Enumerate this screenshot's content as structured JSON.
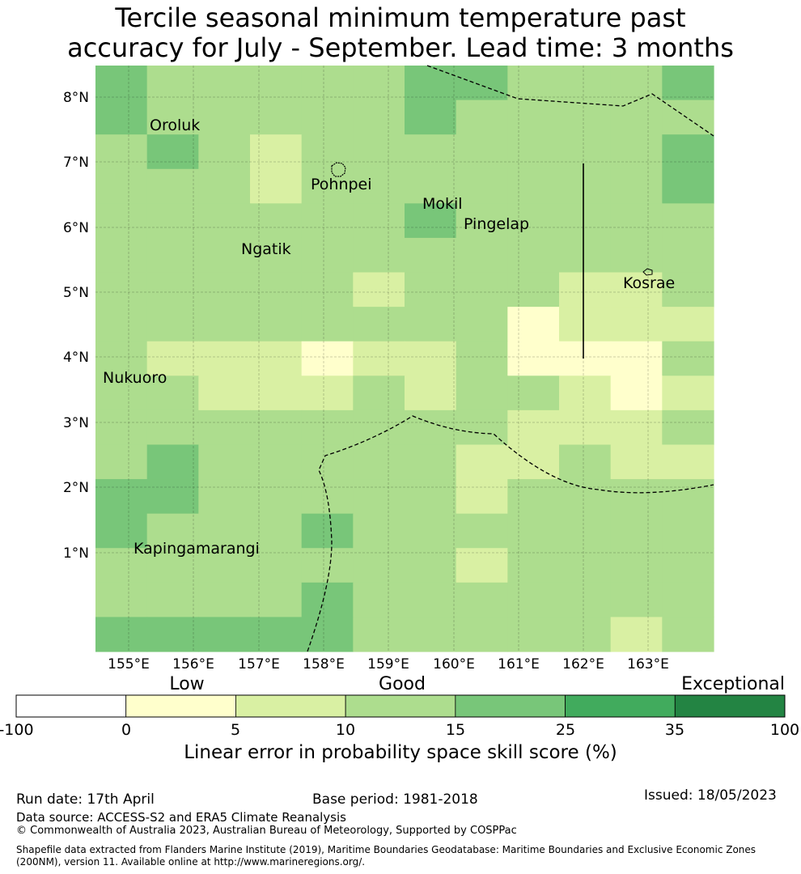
{
  "title": "Tercile seasonal minimum temperature past\naccuracy for July - September. Lead time: 3 months",
  "map": {
    "lat_labels": [
      "8°N",
      "7°N",
      "6°N",
      "5°N",
      "4°N",
      "3°N",
      "2°N",
      "1°N"
    ],
    "lon_labels": [
      "155°E",
      "156°E",
      "157°E",
      "158°E",
      "159°E",
      "160°E",
      "161°E",
      "162°E",
      "163°E"
    ],
    "places": [
      "Oroluk",
      "Pohnpei",
      "Mokil",
      "Pingelap",
      "Ngatik",
      "Kosrae",
      "Nukuoro",
      "Kapingamarangi"
    ],
    "category_colors": [
      "#ffffff",
      "#ffffcc",
      "#d9f0a3",
      "#addd8e",
      "#78c679",
      "#41ab5d",
      "#238443"
    ],
    "grid": [
      [
        4,
        3,
        3,
        3,
        3,
        3,
        4,
        4,
        3,
        3,
        3,
        4
      ],
      [
        4,
        3,
        3,
        3,
        3,
        3,
        4,
        3,
        3,
        3,
        3,
        3
      ],
      [
        3,
        4,
        3,
        2,
        3,
        3,
        3,
        3,
        3,
        3,
        3,
        4
      ],
      [
        3,
        3,
        3,
        2,
        3,
        3,
        3,
        3,
        3,
        3,
        3,
        4
      ],
      [
        3,
        3,
        3,
        3,
        3,
        3,
        4,
        3,
        3,
        3,
        3,
        3
      ],
      [
        3,
        3,
        3,
        3,
        3,
        3,
        3,
        3,
        3,
        3,
        3,
        3
      ],
      [
        3,
        3,
        3,
        3,
        3,
        2,
        3,
        3,
        3,
        2,
        2,
        3
      ],
      [
        3,
        3,
        3,
        3,
        3,
        3,
        3,
        3,
        1,
        2,
        2,
        2
      ],
      [
        3,
        2,
        2,
        2,
        1,
        2,
        2,
        3,
        1,
        1,
        1,
        3
      ],
      [
        3,
        3,
        2,
        2,
        2,
        3,
        2,
        3,
        3,
        2,
        1,
        2
      ],
      [
        3,
        3,
        3,
        3,
        3,
        3,
        3,
        3,
        2,
        2,
        2,
        3
      ],
      [
        3,
        4,
        3,
        3,
        3,
        3,
        3,
        2,
        2,
        3,
        2,
        2
      ],
      [
        4,
        4,
        3,
        3,
        3,
        3,
        3,
        2,
        3,
        3,
        3,
        3
      ],
      [
        4,
        3,
        3,
        3,
        4,
        3,
        3,
        3,
        3,
        3,
        3,
        3
      ],
      [
        3,
        3,
        3,
        3,
        3,
        3,
        3,
        2,
        3,
        3,
        3,
        3
      ],
      [
        3,
        3,
        3,
        3,
        4,
        3,
        3,
        3,
        3,
        3,
        3,
        3
      ],
      [
        4,
        4,
        4,
        4,
        4,
        3,
        3,
        3,
        3,
        3,
        2,
        3
      ]
    ]
  },
  "legend": {
    "categories": [
      "Low",
      "Good",
      "Exceptional"
    ],
    "ticks": [
      "-100",
      "0",
      "5",
      "10",
      "15",
      "25",
      "35",
      "100"
    ],
    "colors": [
      "#ffffff",
      "#ffffcc",
      "#d9f0a3",
      "#addd8e",
      "#78c679",
      "#41ab5d",
      "#238443"
    ],
    "title": "Linear error in probability space skill score (%)"
  },
  "footer": {
    "run_date": "Run date: 17th April",
    "base_period": "Base period: 1981-2018",
    "issued": "Issued: 18/05/2023",
    "data_source": "Data source: ACCESS-S2 and ERA5 Climate Reanalysis",
    "copyright": "© Commonwealth of Australia 2023, Australian Bureau of Meteorology, Supported by COSPPac",
    "shapefile": "Shapefile data extracted from Flanders Marine Institute (2019), Maritime Boundaries Geodatabase: Maritime Boundaries and Exclusive Economic Zones (200NM), version 11. Available online at http://www.marineregions.org/."
  }
}
